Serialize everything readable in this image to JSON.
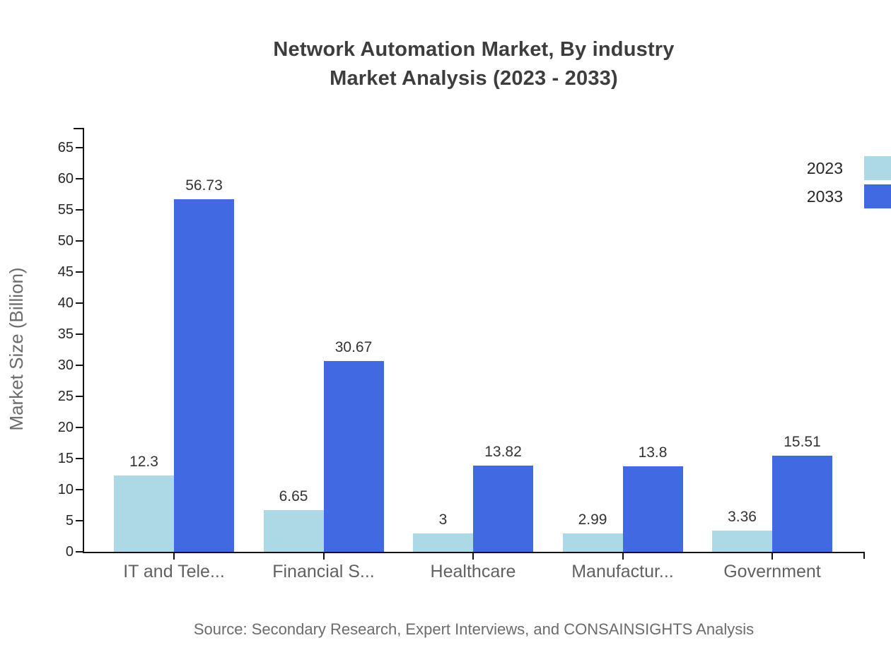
{
  "title": {
    "line1": "Network Automation Market, By industry",
    "line2": "Market Analysis (2023 - 2033)"
  },
  "source_note": "Source: Secondary Research, Expert Interviews, and CONSAINSIGHTS Analysis",
  "chart_data": {
    "type": "bar",
    "title": "Network Automation Market, By industry Market Analysis (2023 - 2033)",
    "categories": [
      "IT and Tele...",
      "Financial S...",
      "Healthcare",
      "Manufactur...",
      "Government"
    ],
    "series": [
      {
        "name": "2023",
        "color": "#ADD8E6",
        "values": [
          12.3,
          6.65,
          3,
          2.99,
          3.36
        ]
      },
      {
        "name": "2033",
        "color": "#4169E1",
        "values": [
          56.73,
          30.67,
          13.82,
          13.8,
          15.51
        ]
      }
    ],
    "value_labels": {
      "2023": [
        "12.3",
        "6.65",
        "3",
        "2.99",
        "3.36"
      ],
      "2033": [
        "56.73",
        "30.67",
        "13.82",
        "13.8",
        "15.51"
      ]
    },
    "xlabel": "",
    "ylabel": "Market Size (Billion)",
    "ylim": [
      0,
      65
    ],
    "ytick_step": 5,
    "grid": false,
    "legend_position": "top-right",
    "bar_value_labels_shown": true
  }
}
